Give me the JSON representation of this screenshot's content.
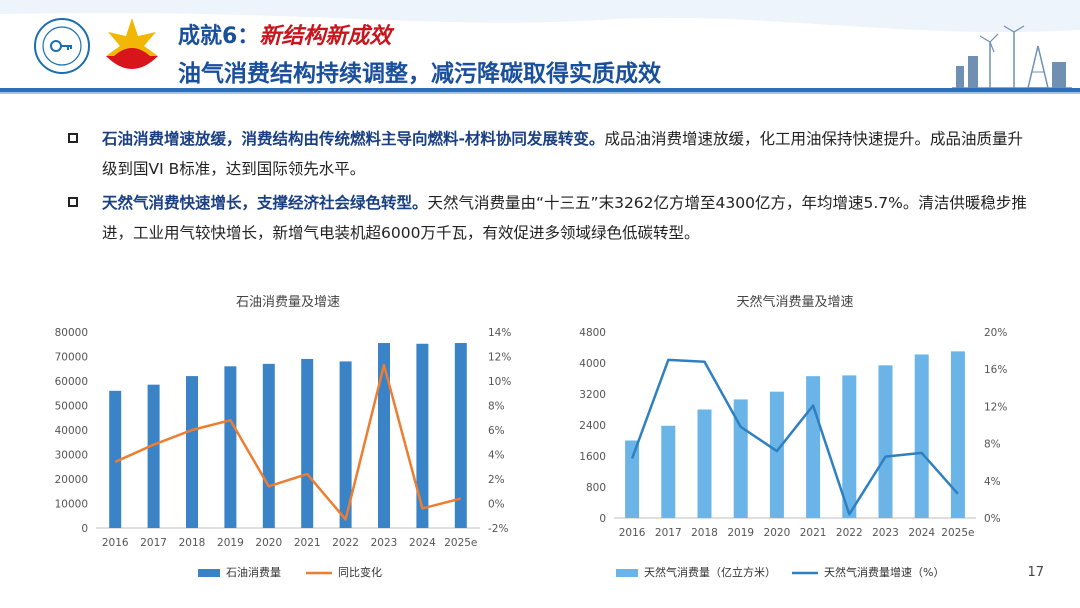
{
  "header": {
    "title_prefix": "成就6：",
    "title_emphasis": "新结构新成效",
    "subtitle": "油气消费结构持续调整，减污降碳取得实质成效",
    "colors": {
      "title": "#1a4f9c",
      "emphasis": "#c8141c",
      "bar": "#2c6fb8"
    }
  },
  "logos": {
    "left": "association-seal-logo",
    "right": "cnpc-shell-logo"
  },
  "bullets": [
    {
      "lead": "石油消费增速放缓，消费结构由传统燃料主导向燃料-材料协同发展转变。",
      "text": "成品油消费增速放缓，化工用油保持快速提升。成品油质量升级到国VI B标准，达到国际领先水平。"
    },
    {
      "lead": "天然气消费快速增长，支撑经济社会绿色转型。",
      "text": "天然气消费量由“十三五”末3262亿方增至4300亿方，年均增速5.7%。清洁供暖稳步推进，工业用气较快增长，新增气电装机超6000万千瓦，有效促进多领域绿色低碳转型。"
    }
  ],
  "page_number": "17",
  "chart_data": [
    {
      "type": "bar",
      "title": "石油消费量及增速",
      "categories": [
        "2016",
        "2017",
        "2018",
        "2019",
        "2020",
        "2021",
        "2022",
        "2023",
        "2024",
        "2025e"
      ],
      "series": [
        {
          "name": "石油消费量",
          "type": "bar",
          "axis": "left",
          "color": "#3a83c6",
          "values": [
            56000,
            58500,
            62000,
            66000,
            67000,
            69000,
            68000,
            75500,
            75200,
            75500
          ]
        },
        {
          "name": "同比变化",
          "type": "line",
          "axis": "right",
          "color": "#ed7d31",
          "values": [
            3.4,
            4.8,
            6.0,
            6.8,
            1.4,
            2.4,
            -1.3,
            11.3,
            -0.4,
            0.4
          ]
        }
      ],
      "y_left": {
        "min": 0,
        "max": 80000,
        "ticks": [
          "80000",
          "70000",
          "60000",
          "50000",
          "40000",
          "30000",
          "20000",
          "10000",
          "0"
        ]
      },
      "y_right": {
        "min": -2,
        "max": 14,
        "ticks": [
          "14%",
          "12%",
          "10%",
          "8%",
          "6%",
          "4%",
          "2%",
          "0%",
          "-2%"
        ]
      }
    },
    {
      "type": "bar",
      "title": "天然气消费量及增速",
      "categories": [
        "2016",
        "2017",
        "2018",
        "2019",
        "2020",
        "2021",
        "2022",
        "2023",
        "2024",
        "2025e"
      ],
      "series": [
        {
          "name": "天然气消费量（亿立方米）",
          "type": "bar",
          "axis": "left",
          "color": "#6bb4e8",
          "values": [
            2000,
            2380,
            2800,
            3060,
            3260,
            3660,
            3680,
            3940,
            4220,
            4300
          ]
        },
        {
          "name": "天然气消费量增速（%）",
          "type": "line",
          "axis": "right",
          "color": "#2e80c0",
          "values": [
            6.4,
            17.0,
            16.8,
            9.8,
            7.2,
            12.1,
            0.4,
            6.6,
            7.0,
            2.6
          ]
        }
      ],
      "y_left": {
        "min": 0,
        "max": 4800,
        "ticks": [
          "4800",
          "4000",
          "3200",
          "2400",
          "1600",
          "800",
          "0"
        ]
      },
      "y_right": {
        "min": 0,
        "max": 20,
        "ticks": [
          "20%",
          "16%",
          "12%",
          "8%",
          "4%",
          "0%"
        ]
      }
    }
  ]
}
